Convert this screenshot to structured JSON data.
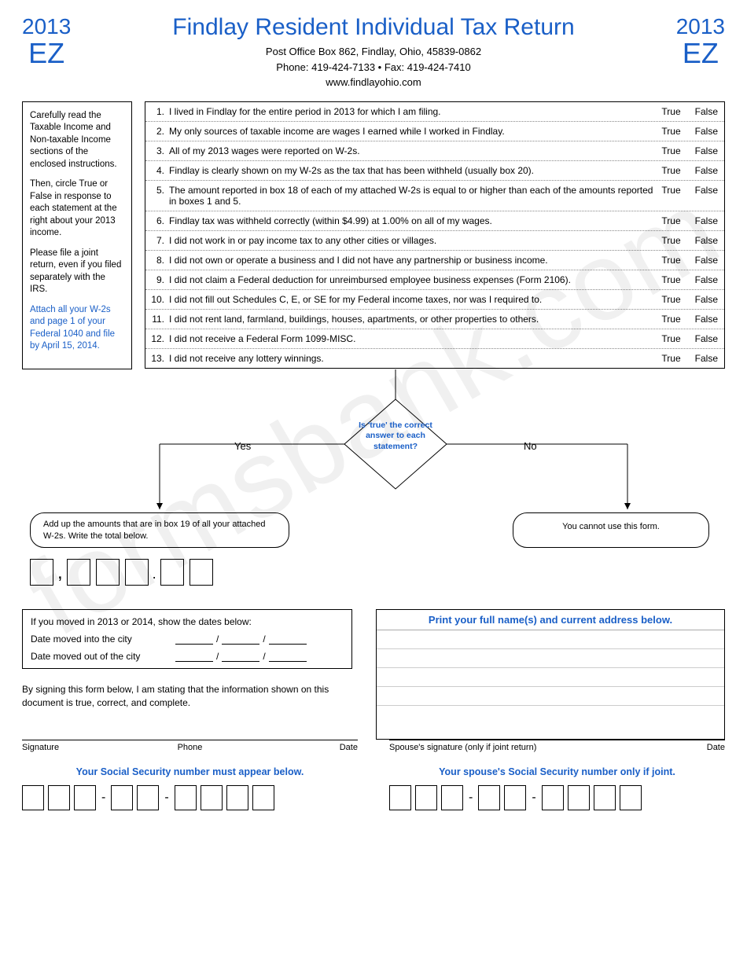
{
  "header": {
    "year": "2013",
    "ez": "EZ",
    "title": "Findlay Resident Individual Tax Return",
    "address": "Post Office Box 862, Findlay, Ohio, 45839-0862",
    "phone_fax": "Phone: 419-424-7133   •   Fax: 419-424-7410",
    "website": "www.findlayohio.com"
  },
  "instructions": {
    "p1": "Carefully read the Taxable Income and Non-taxable Income sections of the enclosed instructions.",
    "p2": "Then, circle True or False in response to each statement at the right about your 2013 income.",
    "p3": "Please file a joint return, even if you filed separately with the IRS.",
    "p4": "Attach all your W-2s and page 1 of your Federal 1040 and file by April 15, 2014."
  },
  "statements": [
    {
      "n": "1.",
      "t": "I lived in Findlay for the entire period in 2013 for which I am filing."
    },
    {
      "n": "2.",
      "t": "My only sources of taxable income are wages I earned while I worked in Findlay."
    },
    {
      "n": "3.",
      "t": "All of my 2013 wages were reported on W-2s."
    },
    {
      "n": "4.",
      "t": "Findlay is clearly shown on my W-2s as the tax that has been withheld (usually box 20)."
    },
    {
      "n": "5.",
      "t": "The amount reported in box 18 of each of my attached W-2s is equal to or higher than each of the amounts reported in boxes 1 and 5."
    },
    {
      "n": "6.",
      "t": "Findlay tax was withheld correctly (within $4.99) at 1.00% on all of my wages."
    },
    {
      "n": "7.",
      "t": "I did not work in or pay income tax to any other cities or villages."
    },
    {
      "n": "8.",
      "t": "I did not own or operate a business and I did not have any partnership or business income."
    },
    {
      "n": "9.",
      "t": "I did not claim a Federal deduction for unreimbursed employee business expenses (Form 2106)."
    },
    {
      "n": "10.",
      "t": "I did not fill out Schedules C, E, or SE for my Federal income taxes, nor was I required to."
    },
    {
      "n": "11.",
      "t": "I did not rent land, farmland, buildings, houses, apartments, or other properties to others."
    },
    {
      "n": "12.",
      "t": "I did not receive a Federal Form 1099-MISC."
    },
    {
      "n": "13.",
      "t": "I did not receive any lottery winnings."
    }
  ],
  "tf": {
    "true": "True",
    "false": "False"
  },
  "flow": {
    "diamond": "Is 'true' the correct answer to each statement?",
    "yes": "Yes",
    "no": "No",
    "yes_result": "Add up the amounts that are in box 19 of all your attached W-2s. Write the total below.",
    "no_result": "You cannot use this form."
  },
  "moved": {
    "title": "If you moved in 2013 or 2014, show the dates below:",
    "in": "Date moved into the city",
    "out": "Date moved out of the city"
  },
  "name_addr_title": "Print your full name(s) and current address below.",
  "attest": "By signing this form below, I am stating that the information shown on this document is true, correct, and complete.",
  "sig": {
    "signature": "Signature",
    "phone": "Phone",
    "date": "Date",
    "spouse_sig": "Spouse's signature (only if joint return)"
  },
  "ssn": {
    "your": "Your Social Security number must appear below.",
    "spouse": "Your spouse's Social Security number only if joint."
  },
  "watermark": "formsbank.com",
  "colors": {
    "blue": "#1a5fc7",
    "text": "#000000",
    "border": "#000000",
    "dotted": "#888888"
  }
}
